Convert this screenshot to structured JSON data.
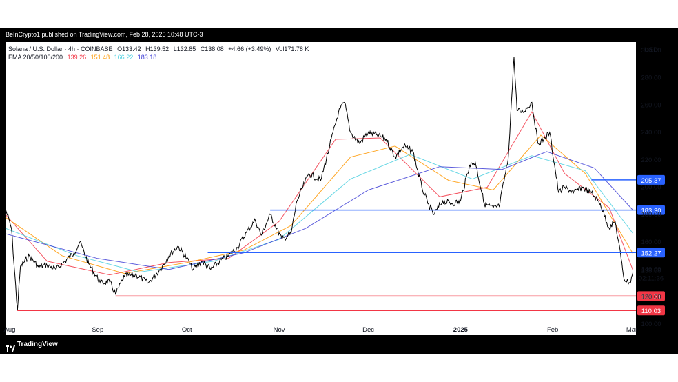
{
  "header": {
    "publisher_line": "BeInCrypto1 published on TradingView.com, Feb 28, 2025 10:48 UTC-3"
  },
  "legend": {
    "symbol": "Solana / U.S. Dollar · 4h · COINBASE",
    "ohlc": [
      {
        "k": "O",
        "v": "133.42"
      },
      {
        "k": "H",
        "v": "139.52"
      },
      {
        "k": "L",
        "v": "132.85"
      },
      {
        "k": "C",
        "v": "138.08"
      }
    ],
    "change": "+4.66 (+3.49%)",
    "volume_label": "Vol",
    "volume": "171.78 K",
    "ema_label": "EMA 20/50/100/200",
    "ema_values": [
      {
        "v": "139.26",
        "color": "#f23645"
      },
      {
        "v": "151.48",
        "color": "#ff9800"
      },
      {
        "v": "166.22",
        "color": "#4dd0e1"
      },
      {
        "v": "183.18",
        "color": "#3f3fd6"
      }
    ]
  },
  "footer": {
    "brand": "TradingView"
  },
  "colors": {
    "ema20": "#f23645",
    "ema50": "#ff9800",
    "ema100": "#4dd0e1",
    "ema200": "#3f3fd6",
    "resistance": "#2962ff",
    "support": "#f23645",
    "price": "#000000"
  },
  "chart_data": {
    "type": "line",
    "title": "Solana / U.S. Dollar · 4h · COINBASE",
    "currency": "USD",
    "ylim": [
      92,
      306
    ],
    "yticks": [
      100,
      120,
      140,
      160,
      180,
      200,
      220,
      240,
      260,
      280,
      300
    ],
    "ytick_labels": [
      "100.00",
      "120.00",
      "140.00",
      "160.00",
      "180.00",
      "200.00",
      "220.00",
      "240.00",
      "260.00",
      "280.00",
      "300.00"
    ],
    "xlim": [
      "2024-08-01",
      "2025-03-01"
    ],
    "xticks": [
      {
        "label": "Aug",
        "date": "2024-08-01"
      },
      {
        "label": "Sep",
        "date": "2024-09-01"
      },
      {
        "label": "Oct",
        "date": "2024-10-01"
      },
      {
        "label": "Nov",
        "date": "2024-11-01"
      },
      {
        "label": "Dec",
        "date": "2024-12-01"
      },
      {
        "label": "2025",
        "date": "2025-01-01",
        "bold": true
      },
      {
        "label": "Feb",
        "date": "2025-02-01"
      },
      {
        "label": "Mar",
        "date": "2025-03-01"
      }
    ],
    "price_series": {
      "name": "SOL/USD",
      "points": [
        [
          "2024-08-01",
          184
        ],
        [
          "2024-08-03",
          170
        ],
        [
          "2024-08-05",
          110
        ],
        [
          "2024-08-06",
          142
        ],
        [
          "2024-08-09",
          150
        ],
        [
          "2024-08-12",
          142
        ],
        [
          "2024-08-15",
          143
        ],
        [
          "2024-08-18",
          140
        ],
        [
          "2024-08-21",
          146
        ],
        [
          "2024-08-24",
          152
        ],
        [
          "2024-08-26",
          160
        ],
        [
          "2024-08-29",
          144
        ],
        [
          "2024-09-02",
          130
        ],
        [
          "2024-09-05",
          131
        ],
        [
          "2024-09-07",
          122
        ],
        [
          "2024-09-10",
          135
        ],
        [
          "2024-09-14",
          136
        ],
        [
          "2024-09-18",
          130
        ],
        [
          "2024-09-22",
          140
        ],
        [
          "2024-09-25",
          150
        ],
        [
          "2024-09-28",
          157
        ],
        [
          "2024-10-01",
          148
        ],
        [
          "2024-10-03",
          140
        ],
        [
          "2024-10-06",
          146
        ],
        [
          "2024-10-09",
          140
        ],
        [
          "2024-10-12",
          146
        ],
        [
          "2024-10-15",
          150
        ],
        [
          "2024-10-18",
          156
        ],
        [
          "2024-10-21",
          167
        ],
        [
          "2024-10-24",
          176
        ],
        [
          "2024-10-26",
          165
        ],
        [
          "2024-10-29",
          180
        ],
        [
          "2024-11-02",
          162
        ],
        [
          "2024-11-05",
          166
        ],
        [
          "2024-11-07",
          190
        ],
        [
          "2024-11-11",
          210
        ],
        [
          "2024-11-15",
          205
        ],
        [
          "2024-11-18",
          230
        ],
        [
          "2024-11-21",
          255
        ],
        [
          "2024-11-23",
          262
        ],
        [
          "2024-11-25",
          240
        ],
        [
          "2024-11-28",
          232
        ],
        [
          "2024-12-01",
          240
        ],
        [
          "2024-12-04",
          238
        ],
        [
          "2024-12-07",
          235
        ],
        [
          "2024-12-10",
          222
        ],
        [
          "2024-12-13",
          230
        ],
        [
          "2024-12-16",
          226
        ],
        [
          "2024-12-19",
          200
        ],
        [
          "2024-12-21",
          188
        ],
        [
          "2024-12-23",
          180
        ],
        [
          "2024-12-26",
          190
        ],
        [
          "2024-12-29",
          188
        ],
        [
          "2025-01-01",
          190
        ],
        [
          "2025-01-04",
          216
        ],
        [
          "2025-01-06",
          218
        ],
        [
          "2025-01-09",
          188
        ],
        [
          "2025-01-12",
          185
        ],
        [
          "2025-01-14",
          186
        ],
        [
          "2025-01-17",
          220
        ],
        [
          "2025-01-19",
          295
        ],
        [
          "2025-01-20",
          256
        ],
        [
          "2025-01-22",
          255
        ],
        [
          "2025-01-25",
          262
        ],
        [
          "2025-01-27",
          232
        ],
        [
          "2025-01-29",
          235
        ],
        [
          "2025-01-31",
          240
        ],
        [
          "2025-02-03",
          196
        ],
        [
          "2025-02-05",
          200
        ],
        [
          "2025-02-08",
          196
        ],
        [
          "2025-02-11",
          200
        ],
        [
          "2025-02-14",
          196
        ],
        [
          "2025-02-17",
          188
        ],
        [
          "2025-02-20",
          170
        ],
        [
          "2025-02-22",
          175
        ],
        [
          "2025-02-24",
          148
        ],
        [
          "2025-02-25",
          133
        ],
        [
          "2025-02-27",
          130
        ],
        [
          "2025-02-28",
          138.08
        ]
      ]
    },
    "ema_series": [
      {
        "name": "EMA 20",
        "color": "#f23645",
        "points": [
          [
            "2024-08-01",
            180
          ],
          [
            "2024-08-15",
            146
          ],
          [
            "2024-09-05",
            136
          ],
          [
            "2024-09-25",
            145
          ],
          [
            "2024-10-15",
            148
          ],
          [
            "2024-11-01",
            175
          ],
          [
            "2024-11-20",
            235
          ],
          [
            "2024-12-05",
            236
          ],
          [
            "2024-12-25",
            193
          ],
          [
            "2025-01-10",
            200
          ],
          [
            "2025-01-25",
            255
          ],
          [
            "2025-02-05",
            210
          ],
          [
            "2025-02-20",
            185
          ],
          [
            "2025-02-28",
            139.26
          ]
        ]
      },
      {
        "name": "EMA 50",
        "color": "#ff9800",
        "points": [
          [
            "2024-08-01",
            178
          ],
          [
            "2024-08-20",
            150
          ],
          [
            "2024-09-10",
            137
          ],
          [
            "2024-10-01",
            145
          ],
          [
            "2024-10-20",
            154
          ],
          [
            "2024-11-05",
            172
          ],
          [
            "2024-11-25",
            222
          ],
          [
            "2024-12-10",
            230
          ],
          [
            "2024-12-28",
            205
          ],
          [
            "2025-01-12",
            198
          ],
          [
            "2025-01-28",
            238
          ],
          [
            "2025-02-12",
            210
          ],
          [
            "2025-02-28",
            151.48
          ]
        ]
      },
      {
        "name": "EMA 100",
        "color": "#4dd0e1",
        "points": [
          [
            "2024-08-01",
            170
          ],
          [
            "2024-08-25",
            150
          ],
          [
            "2024-09-15",
            138
          ],
          [
            "2024-10-10",
            146
          ],
          [
            "2024-11-01",
            162
          ],
          [
            "2024-11-25",
            206
          ],
          [
            "2024-12-15",
            224
          ],
          [
            "2025-01-05",
            206
          ],
          [
            "2025-01-25",
            223
          ],
          [
            "2025-02-12",
            212
          ],
          [
            "2025-02-28",
            166.22
          ]
        ]
      },
      {
        "name": "EMA 200",
        "color": "#3f3fd6",
        "points": [
          [
            "2024-08-01",
            166
          ],
          [
            "2024-09-01",
            148
          ],
          [
            "2024-09-25",
            140
          ],
          [
            "2024-10-20",
            152
          ],
          [
            "2024-11-10",
            170
          ],
          [
            "2024-12-01",
            198
          ],
          [
            "2024-12-25",
            215
          ],
          [
            "2025-01-15",
            213
          ],
          [
            "2025-01-30",
            226
          ],
          [
            "2025-02-15",
            214
          ],
          [
            "2025-02-28",
            183.18
          ]
        ]
      }
    ],
    "levels": [
      {
        "value": 205.37,
        "label": "205.37",
        "color": "#2962ff",
        "from": "2025-02-14"
      },
      {
        "value": 183.3,
        "label": "183.30",
        "color": "#2962ff",
        "from": "2024-10-29"
      },
      {
        "value": 152.27,
        "label": "152.27",
        "color": "#2962ff",
        "from": "2024-10-08"
      },
      {
        "value": 120.51,
        "label": "120.51",
        "color": "#f23645",
        "from": "2024-09-07"
      },
      {
        "value": 110.03,
        "label": "110.03",
        "color": "#f23645",
        "from": "2024-08-05"
      }
    ],
    "last_price_label": "138.08",
    "countdown_label": "02:11:36"
  }
}
